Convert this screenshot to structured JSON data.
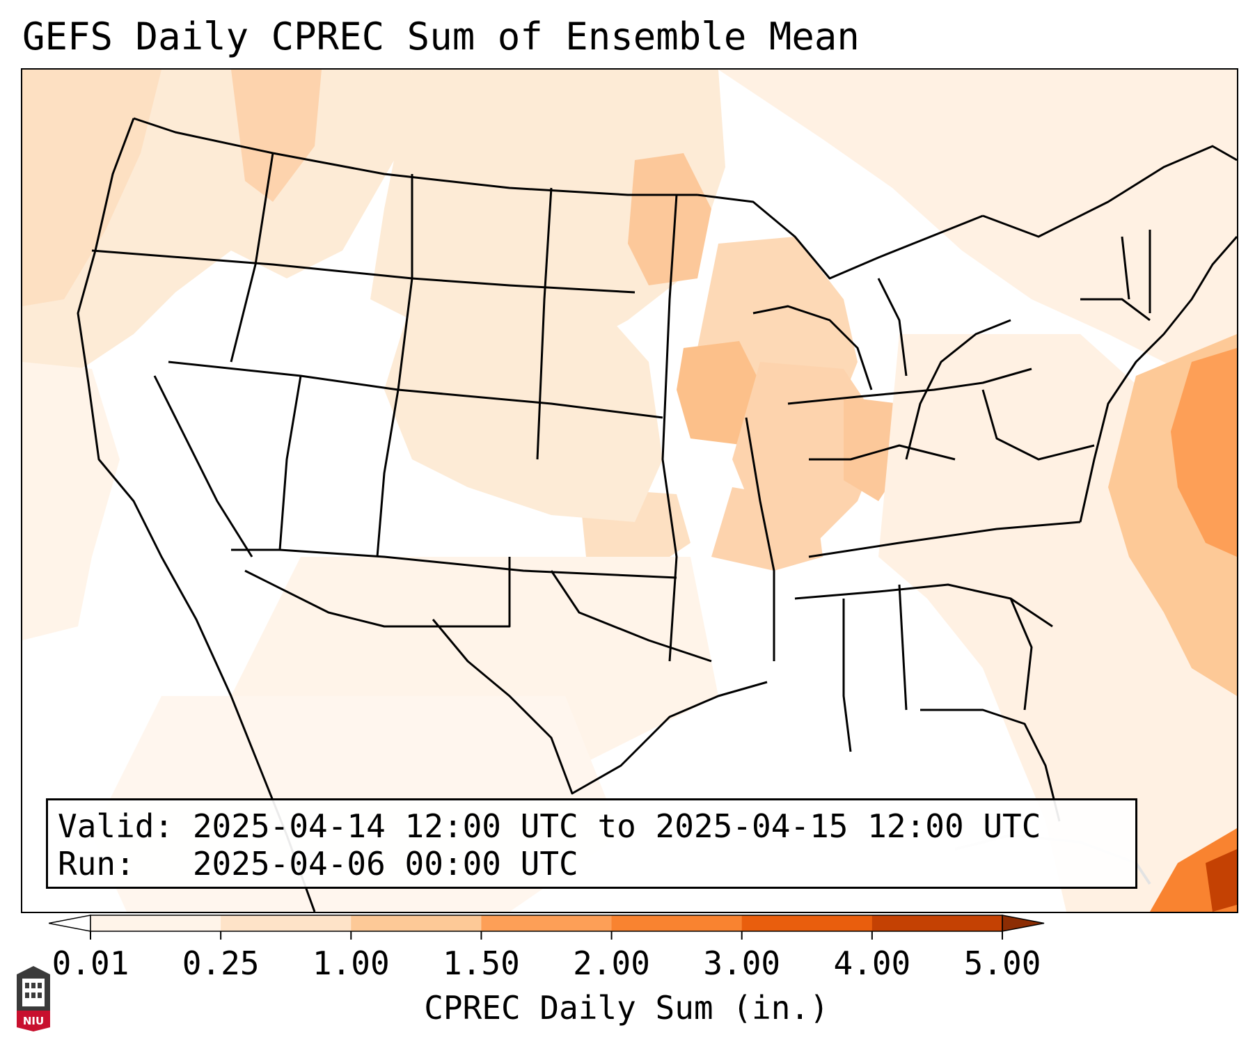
{
  "title": "GEFS Daily CPREC Sum of Ensemble Mean",
  "valid_line": "Valid: 2025-04-14 12:00 UTC to 2025-04-15 12:00 UTC",
  "run_line": "Run:   2025-04-06 00:00 UTC",
  "colorbar": {
    "label": "CPREC Daily Sum (in.)",
    "ticks": [
      "0.01",
      "0.25",
      "1.00",
      "1.50",
      "2.00",
      "3.00",
      "4.00",
      "5.00"
    ],
    "colors": [
      "#fff4e9",
      "#fee3c8",
      "#fdc997",
      "#fd9f57",
      "#f98330",
      "#e95e0d",
      "#c44103"
    ],
    "under_color": "#ffffff",
    "over_color": "#8c2d04"
  },
  "logo": {
    "text": "NIU",
    "icon": "university-tower-icon"
  }
}
